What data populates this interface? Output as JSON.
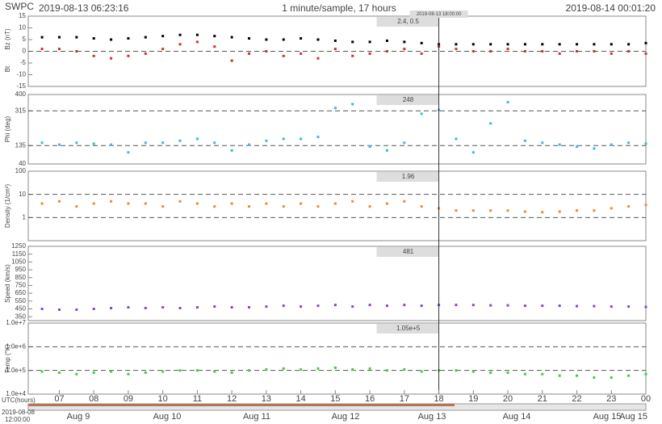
{
  "header": {
    "source": "SWPC",
    "start": "2019-08-13 06:23:16",
    "rate": "1 minute/sample, 17 hours",
    "end": "2019-08-14 00:01:20"
  },
  "xlim": [
    6.1,
    24
  ],
  "xticks": [
    {
      "value": 7,
      "label": "07"
    },
    {
      "value": 8,
      "label": "08"
    },
    {
      "value": 9,
      "label": "09"
    },
    10,
    11,
    12,
    13,
    14,
    15,
    16,
    17,
    18,
    19,
    20,
    21,
    22,
    23,
    {
      "value": 24,
      "label": "00"
    }
  ],
  "x_label": "UTC(hours)",
  "cursor": {
    "x": 18,
    "label": "2019-08-13 18:00:00"
  },
  "timeline": {
    "start": "2019-08-08",
    "start_time": "12:00:00",
    "labels": [
      "Aug 9",
      "Aug 10",
      "Aug 11",
      "Aug 12",
      "Aug 13",
      "Aug 14",
      "Aug 15",
      "Aug 15"
    ]
  },
  "chart_data": [
    {
      "type": "scatter",
      "readout": "2.4, 0.5",
      "ylim": [
        -15,
        15
      ],
      "yticks": [
        -15,
        -10,
        -5,
        0,
        5,
        10,
        15
      ],
      "ref_lines": [
        0
      ],
      "x": [
        6.5,
        7,
        7.5,
        8,
        8.5,
        9,
        9.5,
        10,
        10.5,
        11,
        11.5,
        12,
        12.5,
        13,
        13.5,
        14,
        14.5,
        15,
        15.5,
        16,
        16.5,
        17,
        17.5,
        18,
        18.5,
        19,
        19.5,
        20,
        20.5,
        21,
        21.5,
        22,
        22.5,
        23,
        23.5,
        24
      ],
      "series": [
        {
          "name": "Bz (nT)",
          "color": "#e8262a",
          "values": [
            1,
            1,
            0,
            -2,
            -3,
            -2,
            -1,
            1,
            3,
            4,
            2,
            -4,
            -1,
            0,
            -2,
            -1,
            -3,
            1,
            -2,
            -1,
            0,
            1,
            -1,
            2,
            1,
            0,
            0,
            1,
            0,
            0,
            -1,
            0,
            0,
            -1,
            0,
            -1
          ]
        },
        {
          "name": "Bt",
          "color": "#000000",
          "values": [
            6,
            6,
            6,
            5.5,
            5,
            5.5,
            6,
            6.5,
            7,
            7,
            6.5,
            6,
            5.5,
            5,
            5,
            5.5,
            5,
            4.5,
            4,
            4,
            4.5,
            4,
            3.5,
            3,
            3,
            3,
            3,
            3,
            3,
            3,
            3,
            3,
            3,
            3,
            3,
            3.5
          ]
        }
      ]
    },
    {
      "type": "scatter",
      "readout": "248",
      "ylim": [
        40,
        400
      ],
      "yticks": [
        40,
        135,
        315,
        400
      ],
      "ref_lines": [
        135,
        315
      ],
      "x": [
        6.5,
        7,
        7.5,
        8,
        8.5,
        9,
        9.5,
        10,
        10.5,
        11,
        11.5,
        12,
        12.5,
        13,
        13.5,
        14,
        14.5,
        15,
        15.5,
        16,
        16.5,
        17,
        17.5,
        18,
        18.5,
        19,
        19.5,
        20,
        20.5,
        21,
        21.5,
        22,
        22.5,
        23,
        23.5,
        24
      ],
      "series": [
        {
          "name": "Phi (deg)",
          "color": "#3fb8e0",
          "values": [
            150,
            140,
            150,
            145,
            140,
            100,
            150,
            150,
            160,
            170,
            150,
            110,
            140,
            160,
            170,
            170,
            180,
            330,
            350,
            130,
            110,
            150,
            300,
            320,
            170,
            100,
            250,
            360,
            160,
            150,
            140,
            130,
            120,
            140,
            150,
            145
          ]
        }
      ]
    },
    {
      "type": "scatter",
      "log": true,
      "readout": "1.96",
      "ylim": [
        0.1,
        100
      ],
      "yticks": [
        1,
        10,
        100
      ],
      "ref_lines": [
        1,
        10
      ],
      "x": [
        6.5,
        7,
        7.5,
        8,
        8.5,
        9,
        9.5,
        10,
        10.5,
        11,
        11.5,
        12,
        12.5,
        13,
        13.5,
        14,
        14.5,
        15,
        15.5,
        16,
        16.5,
        17,
        17.5,
        18,
        18.5,
        19,
        19.5,
        20,
        20.5,
        21,
        21.5,
        22,
        22.5,
        23,
        23.5,
        24
      ],
      "series": [
        {
          "name": "Density (1/cm³)",
          "color": "#f08a35",
          "values": [
            4,
            5,
            3,
            4,
            5,
            4,
            4,
            3,
            5,
            4,
            3,
            4,
            3,
            4,
            3,
            4,
            3,
            4,
            5,
            3,
            4,
            5,
            3,
            2.5,
            2,
            2,
            2,
            2,
            1.8,
            1.7,
            1.8,
            2,
            2,
            2.5,
            3,
            3.5
          ]
        }
      ]
    },
    {
      "type": "scatter",
      "readout": "481",
      "ylim": [
        300,
        1250
      ],
      "yticks": [
        350,
        450,
        550,
        650,
        750,
        850,
        950,
        1050,
        1150,
        1250
      ],
      "ref_lines": [],
      "x": [
        6.5,
        7,
        7.5,
        8,
        8.5,
        9,
        9.5,
        10,
        10.5,
        11,
        11.5,
        12,
        12.5,
        13,
        13.5,
        14,
        14.5,
        15,
        15.5,
        16,
        16.5,
        17,
        17.5,
        18,
        18.5,
        19,
        19.5,
        20,
        20.5,
        21,
        21.5,
        22,
        22.5,
        23,
        23.5,
        24
      ],
      "series": [
        {
          "name": "Speed (km/s)",
          "color": "#8b44cc",
          "values": [
            450,
            440,
            440,
            450,
            460,
            470,
            460,
            470,
            460,
            470,
            480,
            470,
            470,
            480,
            490,
            480,
            490,
            500,
            480,
            500,
            490,
            500,
            490,
            500,
            500,
            500,
            495,
            495,
            490,
            490,
            490,
            485,
            485,
            480,
            480,
            475
          ]
        }
      ]
    },
    {
      "type": "scatter",
      "log": true,
      "readout": "1.05e+5",
      "ylim": [
        10000,
        10000000
      ],
      "yticks": [
        {
          "value": 10000,
          "label": "1.0e+4"
        },
        {
          "value": 100000,
          "label": "1.0e+5"
        },
        {
          "value": 1000000,
          "label": "1.0e+6"
        },
        {
          "value": 10000000,
          "label": "1.0e+7"
        }
      ],
      "ref_lines": [
        100000,
        1000000
      ],
      "x": [
        6.5,
        7,
        7.5,
        8,
        8.5,
        9,
        9.5,
        10,
        10.5,
        11,
        11.5,
        12,
        12.5,
        13,
        13.5,
        14,
        14.5,
        15,
        15.5,
        16,
        16.5,
        17,
        17.5,
        18,
        18.5,
        19,
        19.5,
        20,
        20.5,
        21,
        21.5,
        22,
        22.5,
        23,
        23.5,
        24
      ],
      "series": [
        {
          "name": "Temp (°K)",
          "color": "#3fd13a",
          "values": [
            90000,
            80000,
            70000,
            80000,
            90000,
            70000,
            80000,
            90000,
            100000,
            100000,
            90000,
            80000,
            100000,
            110000,
            120000,
            110000,
            120000,
            130000,
            110000,
            120000,
            100000,
            110000,
            90000,
            100000,
            100000,
            90000,
            80000,
            80000,
            70000,
            70000,
            60000,
            60000,
            50000,
            50000,
            60000,
            70000
          ]
        }
      ]
    }
  ]
}
